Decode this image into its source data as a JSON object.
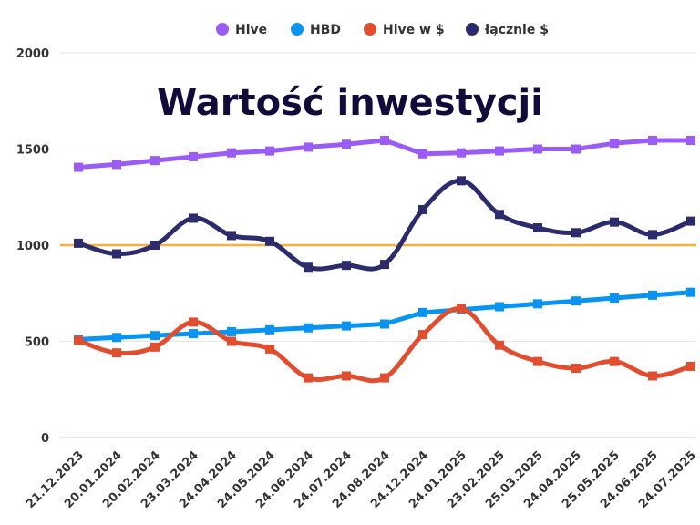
{
  "chart_data": {
    "type": "line",
    "title": "Wartość inwestycji",
    "categories": [
      "21.12.2023",
      "20.01.2024",
      "20.02.2024",
      "23.03.2024",
      "24.04.2024",
      "24.05.2024",
      "24.06.2024",
      "24.07.2024",
      "24.08.2024",
      "24.12.2024",
      "24.01.2025",
      "23.02.2025",
      "25.03.2025",
      "24.04.2025",
      "25.05.2025",
      "24.06.2025",
      "24.07.2025"
    ],
    "ylim": [
      0,
      2000
    ],
    "yticks": [
      "0",
      "500",
      "1000",
      "1500",
      "2000"
    ],
    "grid": true,
    "legend_position": "top",
    "reference_line": {
      "value": 1000,
      "color": "#f5b041"
    },
    "series": [
      {
        "name": "Hive",
        "color": "#9b5cf6",
        "smooth": false,
        "values": [
          1405,
          1420,
          1440,
          1460,
          1480,
          1490,
          1510,
          1525,
          1545,
          1475,
          1480,
          1490,
          1500,
          1500,
          1530,
          1545,
          1545
        ]
      },
      {
        "name": "HBD",
        "color": "#0a94f2",
        "smooth": false,
        "values": [
          510,
          520,
          530,
          540,
          550,
          560,
          570,
          580,
          590,
          650,
          665,
          680,
          695,
          710,
          725,
          740,
          755
        ]
      },
      {
        "name": "Hive w $",
        "color": "#e04e2f",
        "smooth": true,
        "values": [
          505,
          440,
          470,
          600,
          500,
          460,
          310,
          320,
          310,
          535,
          670,
          480,
          395,
          360,
          395,
          320,
          370
        ]
      },
      {
        "name": "łącznie $",
        "color": "#2c2c6c",
        "smooth": true,
        "values": [
          1010,
          955,
          1000,
          1140,
          1050,
          1020,
          885,
          895,
          900,
          1185,
          1335,
          1160,
          1090,
          1065,
          1120,
          1055,
          1125
        ]
      }
    ]
  }
}
